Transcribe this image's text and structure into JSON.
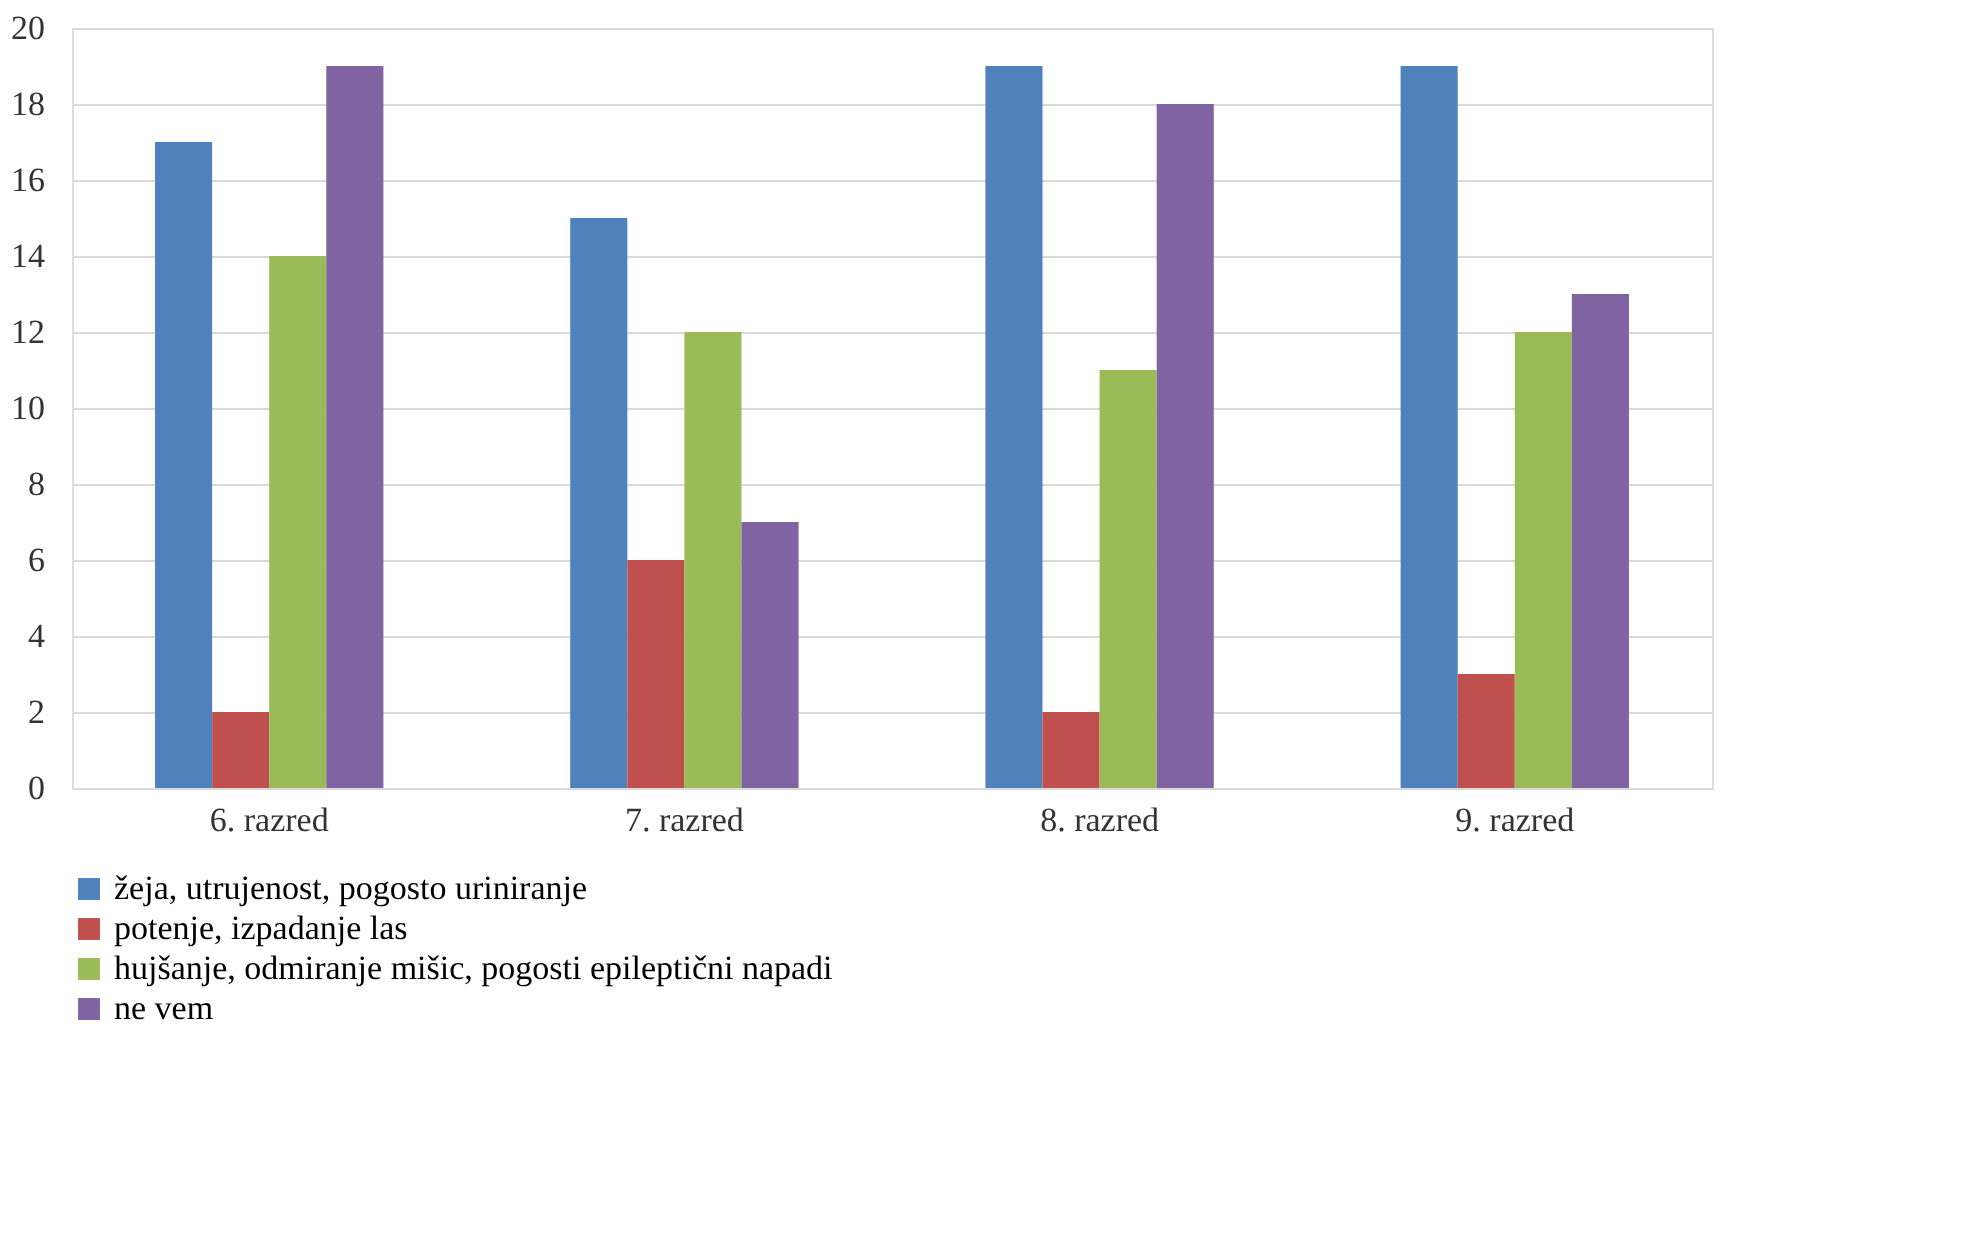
{
  "chart_data": {
    "type": "bar",
    "categories": [
      "6. razred",
      "7. razred",
      "8. razred",
      "9. razred"
    ],
    "series": [
      {
        "name": "žeja, utrujenost, pogosto uriniranje",
        "color": "#4f81bd",
        "values": [
          17,
          15,
          19,
          19
        ]
      },
      {
        "name": "potenje, izpadanje las",
        "color": "#c0504d",
        "values": [
          2,
          6,
          2,
          3
        ]
      },
      {
        "name": "hujšanje, odmiranje mišic, pogosti epileptični napadi",
        "color": "#9bbb59",
        "values": [
          14,
          12,
          11,
          12
        ]
      },
      {
        "name": "ne vem",
        "color": "#8064a2",
        "values": [
          19,
          7,
          18,
          13
        ]
      }
    ],
    "ylim": [
      0,
      20
    ],
    "yticks": [
      0,
      2,
      4,
      6,
      8,
      10,
      12,
      14,
      16,
      18,
      20
    ],
    "grid": "y",
    "legend": "bottom"
  }
}
